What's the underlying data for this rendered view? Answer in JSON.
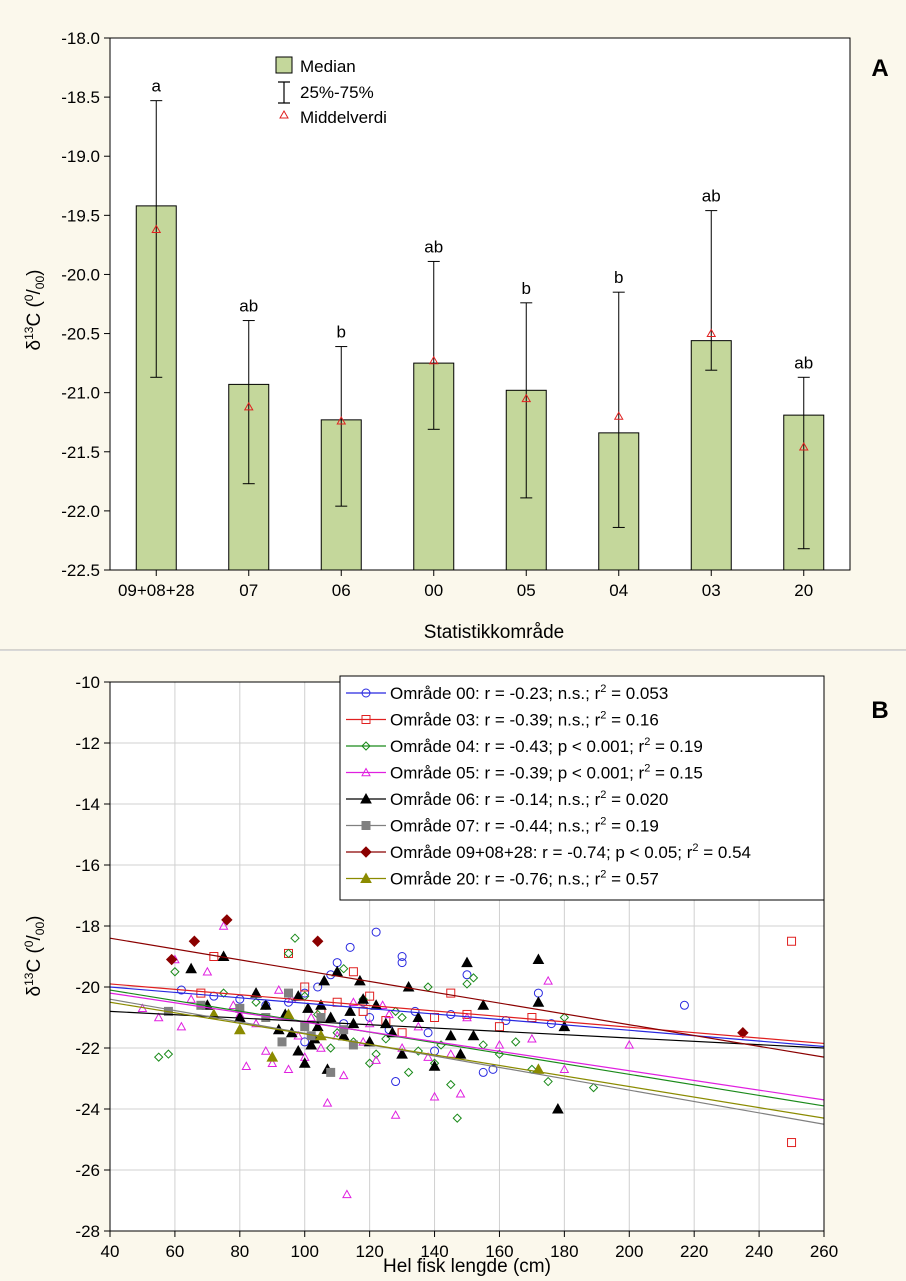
{
  "panelA": {
    "panel_letter": "A",
    "ylabel_delta": "δ",
    "ylabel_sup": "13",
    "ylabel_c": "C (",
    "ylabel_permil_sup": "0",
    "ylabel_permil_sub": "00",
    "ylabel_close": ")",
    "xlabel": "Statistikkområde",
    "legend": {
      "median": "Median",
      "range": "25%-75%",
      "mean": "Middelverdi"
    }
  },
  "panelB": {
    "panel_letter": "B",
    "ylabel_delta": "δ",
    "ylabel_sup": "13",
    "ylabel_c": "C (",
    "ylabel_permil_sup": "0",
    "ylabel_permil_sub": "00",
    "ylabel_close": ")",
    "xlabel": "Hel fisk lengde (cm)",
    "legend": [
      {
        "prefix": "Område 00:  r = -0.23; n.s.; r",
        "sup": "2",
        "suffix": " = 0.053"
      },
      {
        "prefix": "Område 03:  r = -0.39; n.s.; r",
        "sup": "2",
        "suffix": " = 0.16"
      },
      {
        "prefix": "Område 04:  r = -0.43; p < 0.001; r",
        "sup": "2",
        "suffix": " = 0.19"
      },
      {
        "prefix": "Område 05:  r = -0.39; p < 0.001; r",
        "sup": "2",
        "suffix": " = 0.15"
      },
      {
        "prefix": "Område 06:  r = -0.14; n.s.; r",
        "sup": "2",
        "suffix": " = 0.020"
      },
      {
        "prefix": "Område 07:  r = -0.44; n.s.; r",
        "sup": "2",
        "suffix": " = 0.19"
      },
      {
        "prefix": "Område 09+08+28:  r = -0.74; p < 0.05; r",
        "sup": "2",
        "suffix": " = 0.54"
      },
      {
        "prefix": "Område 20:  r = -0.76; n.s.; r",
        "sup": "2",
        "suffix": " = 0.57"
      }
    ]
  },
  "chart_data": [
    {
      "type": "bar",
      "categories": [
        "09+08+28",
        "07",
        "06",
        "00",
        "05",
        "04",
        "03",
        "20"
      ],
      "median": [
        -19.42,
        -20.93,
        -21.23,
        -20.75,
        -20.98,
        -21.34,
        -20.56,
        -21.19
      ],
      "q25": [
        -20.87,
        -21.77,
        -21.96,
        -21.31,
        -21.89,
        -22.14,
        -20.81,
        -22.32
      ],
      "q75": [
        -18.53,
        -20.39,
        -20.61,
        -19.89,
        -20.24,
        -20.15,
        -19.46,
        -20.87
      ],
      "mean": [
        -19.62,
        -21.12,
        -21.24,
        -20.73,
        -21.05,
        -21.2,
        -20.5,
        -21.46
      ],
      "letters": [
        "a",
        "ab",
        "b",
        "ab",
        "b",
        "b",
        "ab",
        "ab"
      ],
      "ylim": [
        -22.5,
        -18.0
      ],
      "yticks": [
        -18.0,
        -18.5,
        -19.0,
        -19.5,
        -20.0,
        -20.5,
        -21.0,
        -21.5,
        -22.0,
        -22.5
      ],
      "colors": {
        "bar": "#c4d79b",
        "mean": "#e02020"
      }
    },
    {
      "type": "scatter",
      "xlim": [
        40,
        260
      ],
      "ylim": [
        -28,
        -10
      ],
      "xticks": [
        40,
        60,
        80,
        100,
        120,
        140,
        160,
        180,
        200,
        220,
        240,
        260
      ],
      "yticks": [
        -10,
        -12,
        -14,
        -16,
        -18,
        -20,
        -22,
        -24,
        -26,
        -28
      ],
      "grid": true,
      "series": [
        {
          "area": "00",
          "color": "#2828e0",
          "marker": "circle",
          "fit": [
            [
              40,
              -20.0
            ],
            [
              260,
              -21.95
            ]
          ],
          "points": [
            [
              62,
              -20.1
            ],
            [
              72,
              -20.3
            ],
            [
              80,
              -20.4
            ],
            [
              88,
              -20.6
            ],
            [
              95,
              -20.5
            ],
            [
              100,
              -20.2
            ],
            [
              104,
              -20.0
            ],
            [
              108,
              -19.6
            ],
            [
              110,
              -19.2
            ],
            [
              114,
              -18.7
            ],
            [
              118,
              -20.5
            ],
            [
              120,
              -21.0
            ],
            [
              122,
              -18.2
            ],
            [
              126,
              -21.4
            ],
            [
              128,
              -23.1
            ],
            [
              130,
              -19.2
            ],
            [
              134,
              -20.8
            ],
            [
              138,
              -21.5
            ],
            [
              140,
              -22.1
            ],
            [
              145,
              -20.9
            ],
            [
              150,
              -19.6
            ],
            [
              155,
              -22.8
            ],
            [
              158,
              -22.7
            ],
            [
              162,
              -21.1
            ],
            [
              172,
              -20.2
            ],
            [
              176,
              -21.2
            ],
            [
              217,
              -20.6
            ],
            [
              100,
              -21.8
            ],
            [
              112,
              -21.2
            ],
            [
              130,
              -19.0
            ]
          ]
        },
        {
          "area": "03",
          "color": "#e02020",
          "marker": "square",
          "fit": [
            [
              40,
              -19.9
            ],
            [
              260,
              -21.85
            ]
          ],
          "points": [
            [
              68,
              -20.2
            ],
            [
              72,
              -19.0
            ],
            [
              95,
              -18.9
            ],
            [
              100,
              -20.0
            ],
            [
              105,
              -20.8
            ],
            [
              110,
              -20.5
            ],
            [
              115,
              -19.5
            ],
            [
              120,
              -20.3
            ],
            [
              125,
              -21.1
            ],
            [
              130,
              -21.5
            ],
            [
              140,
              -21.0
            ],
            [
              145,
              -20.2
            ],
            [
              150,
              -20.9
            ],
            [
              160,
              -21.3
            ],
            [
              170,
              -21.0
            ],
            [
              250,
              -18.5
            ],
            [
              250,
              -25.1
            ],
            [
              118,
              -20.8
            ]
          ]
        },
        {
          "area": "04",
          "color": "#1a8a1a",
          "marker": "diamond-open",
          "fit": [
            [
              40,
              -20.1
            ],
            [
              260,
              -23.9
            ]
          ],
          "points": [
            [
              55,
              -22.3
            ],
            [
              58,
              -22.2
            ],
            [
              60,
              -19.5
            ],
            [
              75,
              -20.2
            ],
            [
              85,
              -20.5
            ],
            [
              95,
              -18.9
            ],
            [
              97,
              -18.4
            ],
            [
              100,
              -20.3
            ],
            [
              104,
              -20.9
            ],
            [
              110,
              -21.5
            ],
            [
              115,
              -21.8
            ],
            [
              118,
              -20.4
            ],
            [
              120,
              -22.5
            ],
            [
              122,
              -22.2
            ],
            [
              125,
              -21.7
            ],
            [
              128,
              -20.8
            ],
            [
              130,
              -21.0
            ],
            [
              135,
              -22.1
            ],
            [
              138,
              -20.0
            ],
            [
              140,
              -22.5
            ],
            [
              142,
              -21.9
            ],
            [
              145,
              -23.2
            ],
            [
              147,
              -24.3
            ],
            [
              150,
              -19.9
            ],
            [
              152,
              -19.7
            ],
            [
              155,
              -21.9
            ],
            [
              160,
              -22.2
            ],
            [
              165,
              -21.8
            ],
            [
              170,
              -22.7
            ],
            [
              175,
              -23.1
            ],
            [
              180,
              -21.0
            ],
            [
              189,
              -23.3
            ],
            [
              112,
              -19.4
            ],
            [
              108,
              -22.0
            ],
            [
              132,
              -22.8
            ]
          ]
        },
        {
          "area": "05",
          "color": "#e020e0",
          "marker": "triangle-open",
          "fit": [
            [
              40,
              -20.2
            ],
            [
              260,
              -23.7
            ]
          ],
          "points": [
            [
              50,
              -20.7
            ],
            [
              55,
              -21.0
            ],
            [
              60,
              -19.1
            ],
            [
              62,
              -21.3
            ],
            [
              70,
              -19.5
            ],
            [
              75,
              -18.0
            ],
            [
              78,
              -20.6
            ],
            [
              80,
              -20.9
            ],
            [
              85,
              -21.2
            ],
            [
              88,
              -22.1
            ],
            [
              90,
              -22.5
            ],
            [
              92,
              -20.1
            ],
            [
              95,
              -22.7
            ],
            [
              98,
              -21.6
            ],
            [
              100,
              -22.3
            ],
            [
              102,
              -21.0
            ],
            [
              105,
              -22.0
            ],
            [
              107,
              -23.8
            ],
            [
              110,
              -21.6
            ],
            [
              112,
              -22.9
            ],
            [
              113,
              -26.8
            ],
            [
              115,
              -20.5
            ],
            [
              118,
              -21.8
            ],
            [
              120,
              -21.2
            ],
            [
              122,
              -22.4
            ],
            [
              124,
              -20.6
            ],
            [
              126,
              -20.9
            ],
            [
              128,
              -24.2
            ],
            [
              130,
              -22.0
            ],
            [
              135,
              -21.3
            ],
            [
              138,
              -22.3
            ],
            [
              140,
              -23.6
            ],
            [
              145,
              -22.2
            ],
            [
              148,
              -23.5
            ],
            [
              150,
              -21.0
            ],
            [
              155,
              -20.6
            ],
            [
              160,
              -21.9
            ],
            [
              170,
              -21.7
            ],
            [
              175,
              -19.8
            ],
            [
              180,
              -22.7
            ],
            [
              200,
              -21.9
            ],
            [
              65,
              -20.4
            ],
            [
              82,
              -22.6
            ],
            [
              96,
              -20.4
            ]
          ]
        },
        {
          "area": "06",
          "color": "#000000",
          "marker": "triangle",
          "fit": [
            [
              40,
              -20.8
            ],
            [
              260,
              -22.0
            ]
          ],
          "points": [
            [
              65,
              -19.4
            ],
            [
              70,
              -20.6
            ],
            [
              75,
              -19.0
            ],
            [
              80,
              -21.0
            ],
            [
              85,
              -20.2
            ],
            [
              88,
              -20.6
            ],
            [
              92,
              -21.4
            ],
            [
              94,
              -20.9
            ],
            [
              96,
              -21.5
            ],
            [
              98,
              -22.1
            ],
            [
              100,
              -22.5
            ],
            [
              101,
              -20.7
            ],
            [
              102,
              -21.9
            ],
            [
              104,
              -21.3
            ],
            [
              105,
              -20.6
            ],
            [
              106,
              -19.8
            ],
            [
              107,
              -22.7
            ],
            [
              108,
              -21.0
            ],
            [
              110,
              -19.5
            ],
            [
              112,
              -21.6
            ],
            [
              114,
              -20.8
            ],
            [
              115,
              -21.2
            ],
            [
              117,
              -19.8
            ],
            [
              118,
              -20.4
            ],
            [
              120,
              -21.8
            ],
            [
              122,
              -20.6
            ],
            [
              125,
              -21.2
            ],
            [
              130,
              -22.2
            ],
            [
              132,
              -20.0
            ],
            [
              135,
              -21.0
            ],
            [
              140,
              -22.6
            ],
            [
              145,
              -21.6
            ],
            [
              148,
              -22.2
            ],
            [
              150,
              -19.2
            ],
            [
              152,
              -21.6
            ],
            [
              155,
              -20.6
            ],
            [
              172,
              -19.1
            ],
            [
              172,
              -20.5
            ],
            [
              178,
              -24.0
            ],
            [
              180,
              -21.3
            ],
            [
              103,
              -21.7
            ],
            [
              98,
              -20.3
            ],
            [
              127,
              -21.5
            ]
          ]
        },
        {
          "area": "07",
          "color": "#808080",
          "marker": "square",
          "fit": [
            [
              40,
              -20.4
            ],
            [
              260,
              -24.5
            ]
          ],
          "points": [
            [
              58,
              -20.8
            ],
            [
              68,
              -20.6
            ],
            [
              80,
              -20.7
            ],
            [
              88,
              -21.0
            ],
            [
              93,
              -21.8
            ],
            [
              95,
              -20.2
            ],
            [
              100,
              -21.3
            ],
            [
              102,
              -21.6
            ],
            [
              105,
              -21.0
            ],
            [
              108,
              -22.8
            ],
            [
              112,
              -21.4
            ],
            [
              115,
              -21.9
            ]
          ]
        },
        {
          "area": "09+08+28",
          "color": "#8b0000",
          "marker": "diamond",
          "fit": [
            [
              40,
              -18.4
            ],
            [
              260,
              -22.3
            ]
          ],
          "points": [
            [
              59,
              -19.1
            ],
            [
              66,
              -18.5
            ],
            [
              76,
              -17.8
            ],
            [
              104,
              -18.5
            ],
            [
              235,
              -21.5
            ]
          ]
        },
        {
          "area": "20",
          "color": "#8b8b00",
          "marker": "triangle",
          "fit": [
            [
              40,
              -20.5
            ],
            [
              260,
              -24.3
            ]
          ],
          "points": [
            [
              72,
              -20.9
            ],
            [
              80,
              -21.4
            ],
            [
              90,
              -22.3
            ],
            [
              95,
              -20.9
            ],
            [
              105,
              -21.6
            ],
            [
              172,
              -22.7
            ]
          ]
        }
      ]
    }
  ]
}
